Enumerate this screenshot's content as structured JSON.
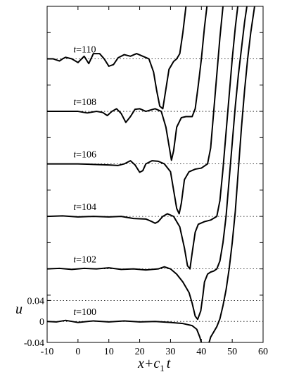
{
  "chart_data": {
    "type": "line",
    "title": "",
    "xlabel": "x+c1t",
    "xlabel_parts": {
      "main": "x+c",
      "sub": "1",
      "tail": "t"
    },
    "ylabel": "u",
    "xlim": [
      -10,
      60
    ],
    "ylim": [
      -0.04,
      0.6
    ],
    "x_ticks": [
      "-10",
      "0",
      "10",
      "20",
      "30",
      "40",
      "50",
      "60"
    ],
    "y_ticks": [
      "-0.04",
      "0",
      "0.04"
    ],
    "grid": "dotted horizontal baseline for each curve",
    "offset_per_curve": 0.1,
    "series": [
      {
        "name": "t=100",
        "t": 100,
        "offset": 0.0,
        "points": [
          [
            -10,
            0
          ],
          [
            -7,
            -0.001
          ],
          [
            -4,
            0.002
          ],
          [
            0,
            -0.002
          ],
          [
            5,
            0.001
          ],
          [
            10,
            -0.001
          ],
          [
            15,
            0.001
          ],
          [
            20,
            -0.001
          ],
          [
            25,
            0
          ],
          [
            30,
            -0.002
          ],
          [
            34,
            -0.004
          ],
          [
            37,
            -0.008
          ],
          [
            38.5,
            -0.015
          ],
          [
            39.5,
            -0.03
          ],
          [
            40.5,
            -0.05
          ]
        ]
      },
      {
        "name": "t=100",
        "t": 100,
        "offset": 0.0,
        "branch": "right",
        "points": [
          [
            42,
            -0.05
          ],
          [
            43,
            -0.03
          ],
          [
            44,
            -0.02
          ],
          [
            45,
            -0.01
          ],
          [
            46,
            0.005
          ],
          [
            47,
            0.03
          ],
          [
            48,
            0.06
          ],
          [
            49,
            0.1
          ],
          [
            50,
            0.15
          ],
          [
            51,
            0.21
          ],
          [
            52,
            0.29
          ],
          [
            53,
            0.37
          ],
          [
            54,
            0.44
          ],
          [
            55,
            0.5
          ],
          [
            56,
            0.55
          ],
          [
            57,
            0.59
          ],
          [
            58,
            0.63
          ]
        ]
      },
      {
        "name": "t=102",
        "t": 102,
        "offset": 0.1,
        "points": [
          [
            -10,
            0.1
          ],
          [
            -6,
            0.101
          ],
          [
            -2,
            0.099
          ],
          [
            2,
            0.101
          ],
          [
            6,
            0.1
          ],
          [
            10,
            0.102
          ],
          [
            14,
            0.099
          ],
          [
            18,
            0.1
          ],
          [
            22,
            0.098
          ],
          [
            26,
            0.1
          ],
          [
            28,
            0.104
          ],
          [
            30,
            0.1
          ],
          [
            32,
            0.09
          ],
          [
            34,
            0.075
          ],
          [
            36,
            0.055
          ],
          [
            37,
            0.035
          ],
          [
            38,
            0.01
          ],
          [
            38.8,
            0.004
          ],
          [
            39.8,
            0.02
          ],
          [
            40.5,
            0.05
          ],
          [
            41,
            0.075
          ],
          [
            42,
            0.09
          ],
          [
            43,
            0.094
          ],
          [
            44,
            0.096
          ],
          [
            45,
            0.1
          ],
          [
            46,
            0.115
          ],
          [
            47,
            0.15
          ],
          [
            48,
            0.2
          ],
          [
            49,
            0.27
          ],
          [
            50,
            0.34
          ],
          [
            51,
            0.41
          ],
          [
            52,
            0.47
          ],
          [
            53,
            0.52
          ],
          [
            54,
            0.57
          ],
          [
            55,
            0.61
          ],
          [
            56,
            0.65
          ]
        ]
      },
      {
        "name": "t=104",
        "t": 104,
        "offset": 0.2,
        "points": [
          [
            -10,
            0.2
          ],
          [
            -5,
            0.201
          ],
          [
            0,
            0.199
          ],
          [
            5,
            0.2
          ],
          [
            10,
            0.199
          ],
          [
            14,
            0.2
          ],
          [
            18,
            0.196
          ],
          [
            22,
            0.195
          ],
          [
            24,
            0.19
          ],
          [
            25,
            0.187
          ],
          [
            26,
            0.19
          ],
          [
            27.5,
            0.2
          ],
          [
            29,
            0.205
          ],
          [
            31,
            0.2
          ],
          [
            33,
            0.18
          ],
          [
            34.5,
            0.14
          ],
          [
            35.5,
            0.106
          ],
          [
            36.3,
            0.1
          ],
          [
            37,
            0.13
          ],
          [
            38,
            0.17
          ],
          [
            39,
            0.185
          ],
          [
            41,
            0.19
          ],
          [
            43,
            0.193
          ],
          [
            45,
            0.2
          ],
          [
            46,
            0.23
          ],
          [
            47,
            0.29
          ],
          [
            48,
            0.36
          ],
          [
            49,
            0.43
          ],
          [
            50,
            0.5
          ],
          [
            51,
            0.56
          ],
          [
            52,
            0.61
          ],
          [
            53,
            0.65
          ]
        ]
      },
      {
        "name": "t=106",
        "t": 106,
        "offset": 0.3,
        "points": [
          [
            -10,
            0.3
          ],
          [
            -5,
            0.3
          ],
          [
            0,
            0.3
          ],
          [
            5,
            0.299
          ],
          [
            10,
            0.298
          ],
          [
            13,
            0.297
          ],
          [
            15,
            0.3
          ],
          [
            17,
            0.306
          ],
          [
            18.5,
            0.298
          ],
          [
            20,
            0.284
          ],
          [
            21,
            0.287
          ],
          [
            22,
            0.3
          ],
          [
            24,
            0.306
          ],
          [
            26,
            0.305
          ],
          [
            28,
            0.3
          ],
          [
            30,
            0.285
          ],
          [
            31,
            0.25
          ],
          [
            32,
            0.215
          ],
          [
            32.8,
            0.205
          ],
          [
            33.5,
            0.225
          ],
          [
            34.5,
            0.27
          ],
          [
            36,
            0.285
          ],
          [
            38,
            0.29
          ],
          [
            40,
            0.292
          ],
          [
            42,
            0.3
          ],
          [
            43,
            0.33
          ],
          [
            44,
            0.4
          ],
          [
            45,
            0.47
          ],
          [
            46,
            0.54
          ],
          [
            47,
            0.6
          ],
          [
            48,
            0.65
          ]
        ]
      },
      {
        "name": "t=108",
        "t": 108,
        "offset": 0.4,
        "points": [
          [
            -10,
            0.4
          ],
          [
            -5,
            0.4
          ],
          [
            0,
            0.4
          ],
          [
            3,
            0.397
          ],
          [
            6,
            0.4
          ],
          [
            8,
            0.398
          ],
          [
            9.5,
            0.392
          ],
          [
            11,
            0.4
          ],
          [
            12.5,
            0.405
          ],
          [
            14,
            0.396
          ],
          [
            15.5,
            0.379
          ],
          [
            17,
            0.39
          ],
          [
            18.5,
            0.404
          ],
          [
            20,
            0.405
          ],
          [
            22,
            0.4
          ],
          [
            25,
            0.405
          ],
          [
            27,
            0.4
          ],
          [
            28.5,
            0.37
          ],
          [
            29.5,
            0.335
          ],
          [
            30.3,
            0.307
          ],
          [
            31,
            0.325
          ],
          [
            32,
            0.37
          ],
          [
            33.5,
            0.388
          ],
          [
            35,
            0.39
          ],
          [
            37,
            0.39
          ],
          [
            38,
            0.405
          ],
          [
            39,
            0.45
          ],
          [
            40,
            0.5
          ],
          [
            41,
            0.56
          ],
          [
            42,
            0.61
          ],
          [
            43,
            0.65
          ]
        ]
      },
      {
        "name": "t=110",
        "t": 110,
        "offset": 0.5,
        "points": [
          [
            -10,
            0.5
          ],
          [
            -8,
            0.5
          ],
          [
            -6,
            0.496
          ],
          [
            -5,
            0.5
          ],
          [
            -4,
            0.503
          ],
          [
            -2,
            0.5
          ],
          [
            0,
            0.493
          ],
          [
            2,
            0.505
          ],
          [
            3.5,
            0.491
          ],
          [
            5,
            0.51
          ],
          [
            7,
            0.51
          ],
          [
            8.5,
            0.5
          ],
          [
            10,
            0.486
          ],
          [
            11.5,
            0.489
          ],
          [
            13,
            0.502
          ],
          [
            15,
            0.508
          ],
          [
            17,
            0.505
          ],
          [
            19,
            0.51
          ],
          [
            21,
            0.505
          ],
          [
            23,
            0.5
          ],
          [
            24.5,
            0.475
          ],
          [
            25.5,
            0.44
          ],
          [
            26.5,
            0.41
          ],
          [
            27.5,
            0.405
          ],
          [
            28.3,
            0.435
          ],
          [
            29.5,
            0.48
          ],
          [
            31,
            0.495
          ],
          [
            32,
            0.5
          ],
          [
            33,
            0.51
          ],
          [
            34,
            0.55
          ],
          [
            35,
            0.6
          ],
          [
            36,
            0.65
          ]
        ]
      }
    ],
    "annotations": [
      "t=100",
      "t=102",
      "t=104",
      "t=106",
      "t=108",
      "t=110"
    ]
  }
}
